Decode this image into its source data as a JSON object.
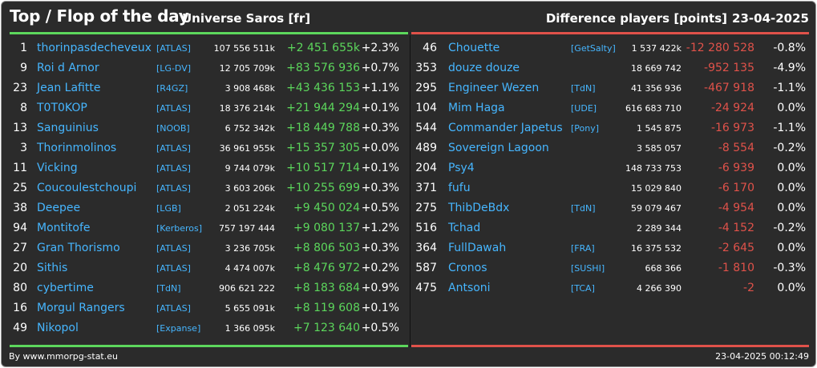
{
  "header": {
    "title": "Top / Flop of the day",
    "subtitle": "Universe Saros [fr]",
    "diff_label": "Difference players [points]",
    "date": "23-04-2025"
  },
  "colors": {
    "background": "#2b2b2b",
    "link": "#46b6ff",
    "positive": "#5cd75c",
    "negative": "#e0524a"
  },
  "top": [
    {
      "rank": "1",
      "name": "thorinpasdecheveux",
      "alliance": "[ATLAS]",
      "points": "107 556 511k",
      "diff": "+2 451 655k",
      "pct": "+2.3%"
    },
    {
      "rank": "9",
      "name": "Roi d Arnor",
      "alliance": "[LG-DV]",
      "points": "12 705 709k",
      "diff": "+83 576 936",
      "pct": "+0.7%"
    },
    {
      "rank": "23",
      "name": "Jean Lafitte",
      "alliance": "[R4GZ]",
      "points": "3 908 468k",
      "diff": "+43 436 153",
      "pct": "+1.1%"
    },
    {
      "rank": "8",
      "name": "T0T0KOP",
      "alliance": "[ATLAS]",
      "points": "18 376 214k",
      "diff": "+21 944 294",
      "pct": "+0.1%"
    },
    {
      "rank": "13",
      "name": "Sanguinius",
      "alliance": "[NOOB]",
      "points": "6 752 342k",
      "diff": "+18 449 788",
      "pct": "+0.3%"
    },
    {
      "rank": "3",
      "name": "Thorinmolinos",
      "alliance": "[ATLAS]",
      "points": "36 961 955k",
      "diff": "+15 357 305",
      "pct": "+0.0%"
    },
    {
      "rank": "11",
      "name": "Vicking",
      "alliance": "[ATLAS]",
      "points": "9 744 079k",
      "diff": "+10 517 714",
      "pct": "+0.1%"
    },
    {
      "rank": "25",
      "name": "Coucoulestchoupi",
      "alliance": "[ATLAS]",
      "points": "3 603 206k",
      "diff": "+10 255 699",
      "pct": "+0.3%"
    },
    {
      "rank": "38",
      "name": "Deepee",
      "alliance": "[LGB]",
      "points": "2 051 224k",
      "diff": "+9 450 024",
      "pct": "+0.5%"
    },
    {
      "rank": "94",
      "name": "Montitofe",
      "alliance": "[Kerberos]",
      "points": "757 197 444",
      "diff": "+9 080 137",
      "pct": "+1.2%"
    },
    {
      "rank": "27",
      "name": "Gran Thorismo",
      "alliance": "[ATLAS]",
      "points": "3 236 705k",
      "diff": "+8 806 503",
      "pct": "+0.3%"
    },
    {
      "rank": "20",
      "name": "Sithis",
      "alliance": "[ATLAS]",
      "points": "4 474 007k",
      "diff": "+8 476 972",
      "pct": "+0.2%"
    },
    {
      "rank": "80",
      "name": "cybertime",
      "alliance": "[TdN]",
      "points": "906 621 222",
      "diff": "+8 183 684",
      "pct": "+0.9%"
    },
    {
      "rank": "16",
      "name": "Morgul Rangers",
      "alliance": "[ATLAS]",
      "points": "5 655 091k",
      "diff": "+8 119 608",
      "pct": "+0.1%"
    },
    {
      "rank": "49",
      "name": "Nikopol",
      "alliance": "[Expanse]",
      "points": "1 366 095k",
      "diff": "+7 123 640",
      "pct": "+0.5%"
    }
  ],
  "flop": [
    {
      "rank": "46",
      "name": "Chouette",
      "alliance": "[GetSalty]",
      "points": "1 537 422k",
      "diff": "-12 280 528",
      "pct": "-0.8%"
    },
    {
      "rank": "353",
      "name": "douze douze",
      "alliance": "",
      "points": "18 669 742",
      "diff": "-952 135",
      "pct": "-4.9%"
    },
    {
      "rank": "295",
      "name": "Engineer Wezen",
      "alliance": "[TdN]",
      "points": "41 356 936",
      "diff": "-467 918",
      "pct": "-1.1%"
    },
    {
      "rank": "104",
      "name": "Mim Haga",
      "alliance": "[UDE]",
      "points": "616 683 710",
      "diff": "-24 924",
      "pct": "0.0%"
    },
    {
      "rank": "544",
      "name": "Commander Japetus",
      "alliance": "[Pony]",
      "points": "1 545 875",
      "diff": "-16 973",
      "pct": "-1.1%"
    },
    {
      "rank": "489",
      "name": "Sovereign Lagoon",
      "alliance": "",
      "points": "3 585 057",
      "diff": "-8 554",
      "pct": "-0.2%"
    },
    {
      "rank": "204",
      "name": "Psy4",
      "alliance": "",
      "points": "148 733 753",
      "diff": "-6 939",
      "pct": "0.0%"
    },
    {
      "rank": "371",
      "name": "fufu",
      "alliance": "",
      "points": "15 029 840",
      "diff": "-6 170",
      "pct": "0.0%"
    },
    {
      "rank": "275",
      "name": "ThibDeBdx",
      "alliance": "[TdN]",
      "points": "59 079 467",
      "diff": "-4 954",
      "pct": "0.0%"
    },
    {
      "rank": "516",
      "name": "Tchad",
      "alliance": "",
      "points": "2 289 344",
      "diff": "-4 152",
      "pct": "-0.2%"
    },
    {
      "rank": "364",
      "name": "FullDawah",
      "alliance": "[FRA]",
      "points": "16 375 532",
      "diff": "-2 645",
      "pct": "0.0%"
    },
    {
      "rank": "587",
      "name": "Cronos",
      "alliance": "[SUSHI]",
      "points": "668 366",
      "diff": "-1 810",
      "pct": "-0.3%"
    },
    {
      "rank": "475",
      "name": "Antsoni",
      "alliance": "[TCA]",
      "points": "4 266 390",
      "diff": "-2",
      "pct": "0.0%"
    }
  ],
  "footer": {
    "credit": "By www.mmorpg-stat.eu",
    "timestamp": "23-04-2025 00:12:49"
  }
}
